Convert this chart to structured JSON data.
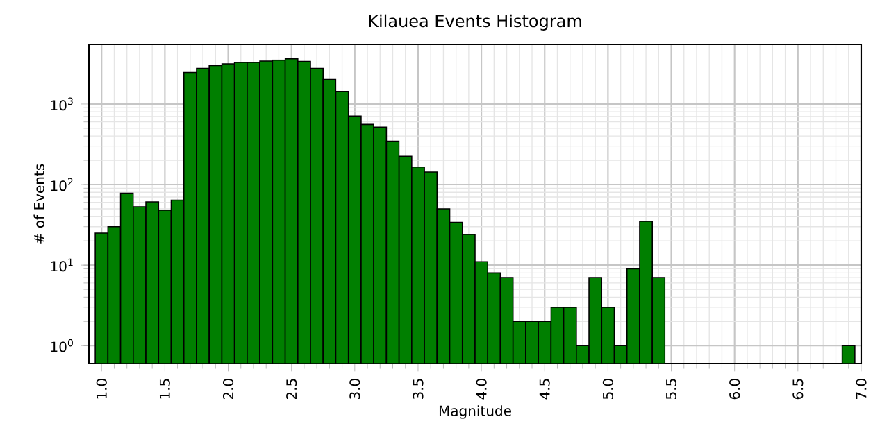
{
  "chart_data": {
    "type": "histogram",
    "title": "Kilauea Events Histogram",
    "xlabel": "Magnitude",
    "ylabel": "# of Events",
    "bins": [
      0.95,
      1.05,
      1.15,
      1.25,
      1.35,
      1.45,
      1.55,
      1.65,
      1.75,
      1.85,
      1.95,
      2.05,
      2.15,
      2.25,
      2.35,
      2.45,
      2.55,
      2.65,
      2.75,
      2.85,
      2.95,
      3.05,
      3.15,
      3.25,
      3.35,
      3.45,
      3.55,
      3.65,
      3.75,
      3.85,
      3.95,
      4.05,
      4.15,
      4.25,
      4.35,
      4.45,
      4.55,
      4.65,
      4.75,
      4.85,
      4.95,
      5.05,
      5.15,
      5.25,
      5.35,
      5.45,
      6.85,
      6.95
    ],
    "values": [
      25,
      30,
      78,
      53,
      61,
      48,
      64,
      2460,
      2770,
      3000,
      3160,
      3290,
      3290,
      3420,
      3510,
      3650,
      3380,
      2770,
      2020,
      1430,
      710,
      558,
      517,
      346,
      224,
      165,
      143,
      50,
      34,
      24,
      11,
      8,
      7,
      2,
      2,
      2,
      3,
      3,
      1,
      7,
      3,
      1,
      9,
      35,
      7,
      null,
      1
    ],
    "color": "#007f00",
    "log": "y",
    "grid": true,
    "xlim": [
      0.9,
      7.0
    ],
    "ylim": [
      0.6,
      5500
    ],
    "xticks": [
      {
        "value": 1.0,
        "label": "1.0"
      },
      {
        "value": 1.5,
        "label": "1.5"
      },
      {
        "value": 2.0,
        "label": "2.0"
      },
      {
        "value": 2.5,
        "label": "2.5"
      },
      {
        "value": 3.0,
        "label": "3.0"
      },
      {
        "value": 3.5,
        "label": "3.5"
      },
      {
        "value": 4.0,
        "label": "4.0"
      },
      {
        "value": 4.5,
        "label": "4.5"
      },
      {
        "value": 5.0,
        "label": "5.0"
      },
      {
        "value": 5.5,
        "label": "5.5"
      },
      {
        "value": 6.0,
        "label": "6.0"
      },
      {
        "value": 6.5,
        "label": "6.5"
      },
      {
        "value": 7.0,
        "label": "7.0"
      }
    ],
    "yticks": [
      {
        "value": 1,
        "label": "10$^{0}$"
      },
      {
        "value": 10,
        "label": "10$^{1}$"
      },
      {
        "value": 100,
        "label": "10$^{2}$"
      },
      {
        "value": 1000,
        "label": "10$^{3}$"
      }
    ]
  }
}
